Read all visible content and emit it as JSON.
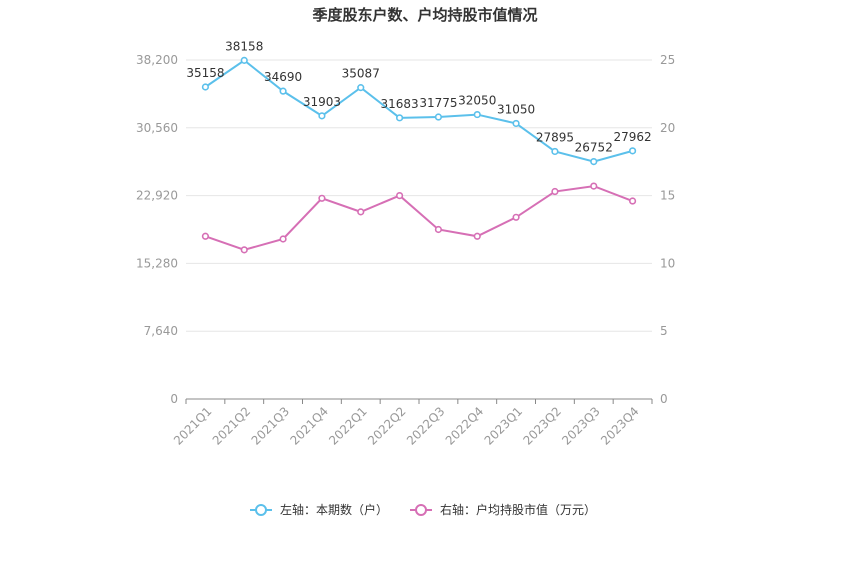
{
  "chart_data": {
    "type": "line",
    "title": "季度股东户数、户均持股市值情况",
    "categories": [
      "2021Q1",
      "2021Q2",
      "2021Q3",
      "2021Q4",
      "2022Q1",
      "2022Q2",
      "2022Q3",
      "2022Q4",
      "2023Q1",
      "2023Q2",
      "2023Q3",
      "2023Q4"
    ],
    "series": [
      {
        "name": "左轴：本期数（户）",
        "axis": "left",
        "color": "#5bc0eb",
        "values": [
          35158,
          38158,
          34690,
          31903,
          35087,
          31683,
          31775,
          32050,
          31050,
          27895,
          26752,
          27962
        ]
      },
      {
        "name": "右轴：户均持股市值（万元）",
        "axis": "right",
        "color": "#d66fb5",
        "values": [
          12.0,
          11.0,
          11.8,
          14.8,
          13.8,
          15.0,
          12.5,
          12.0,
          13.4,
          15.3,
          15.7,
          14.6
        ]
      }
    ],
    "left_axis": {
      "ylim": [
        0,
        38200
      ],
      "ticks": [
        "0",
        "7,640",
        "15,280",
        "22,920",
        "30,560",
        "38,200"
      ]
    },
    "right_axis": {
      "ylim": [
        0,
        25
      ],
      "ticks": [
        "0",
        "5",
        "10",
        "15",
        "20",
        "25"
      ]
    },
    "grid": true,
    "legend_position": "bottom"
  }
}
